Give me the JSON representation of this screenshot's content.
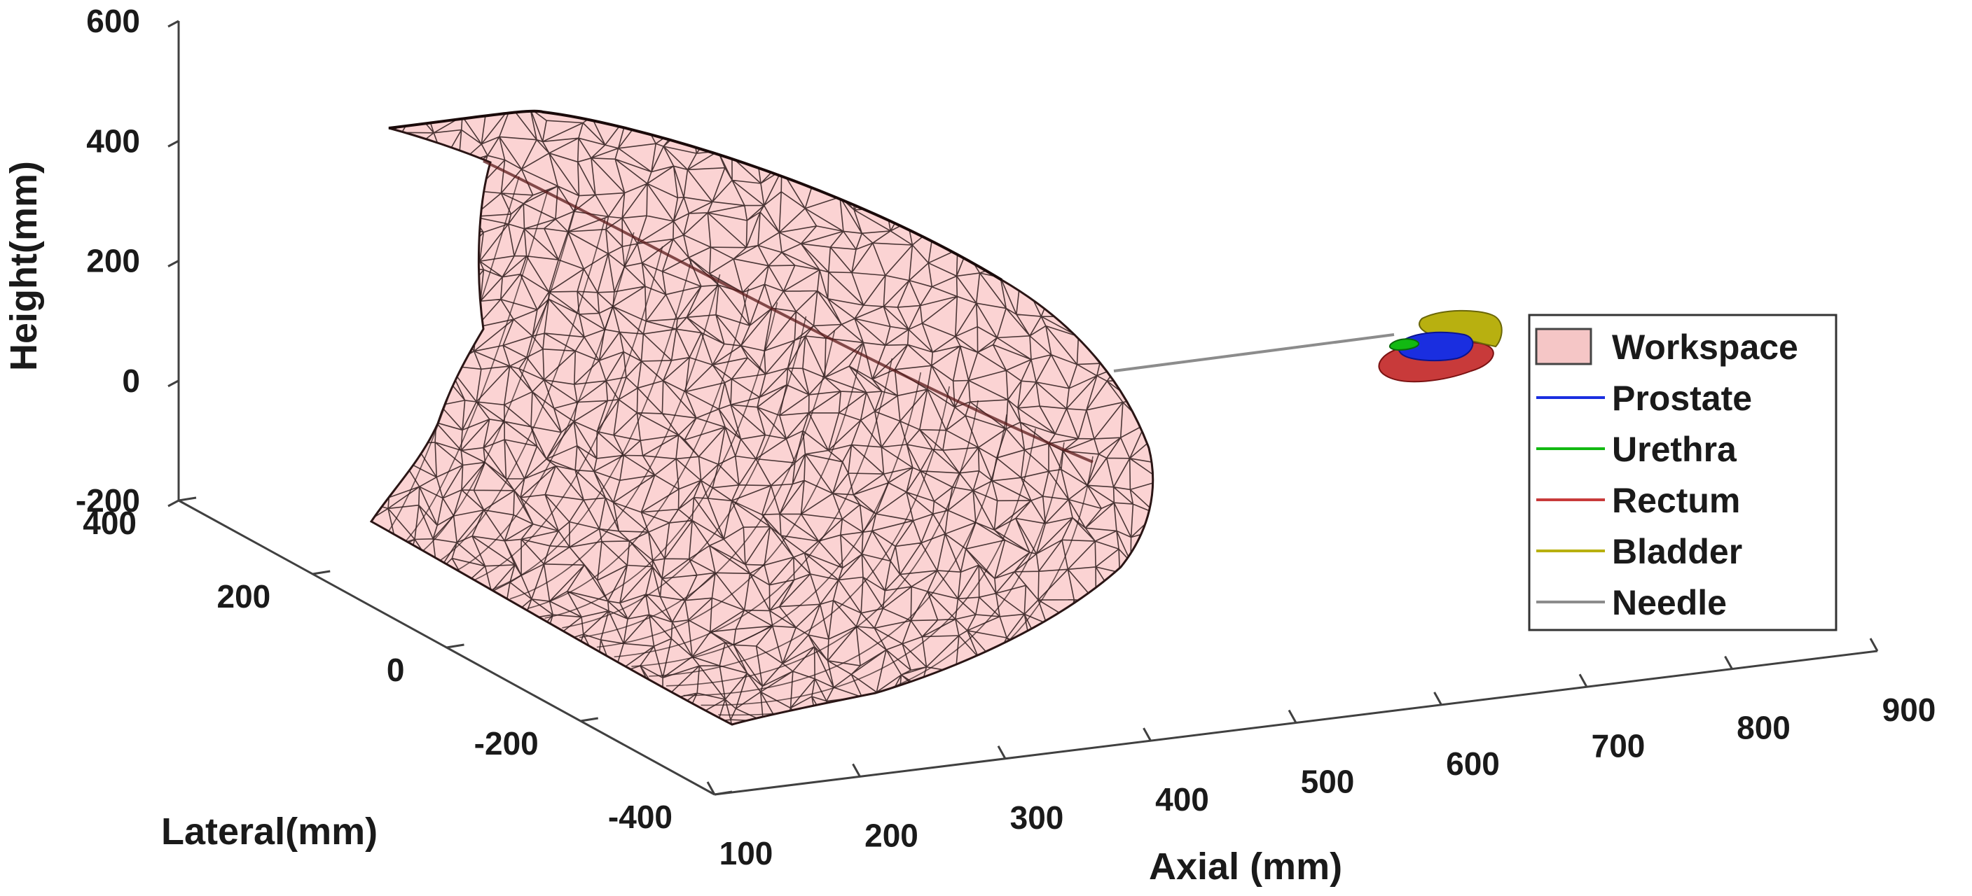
{
  "chart_data": {
    "type": "3d-surface",
    "title": "",
    "xlabel": "Axial (mm)",
    "ylabel": "Lateral(mm)",
    "zlabel": "Height(mm)",
    "xlim": [
      100,
      900
    ],
    "ylim": [
      -400,
      400
    ],
    "zlim": [
      -200,
      600
    ],
    "xticks": [
      "100",
      "200",
      "300",
      "400",
      "500",
      "600",
      "700",
      "800",
      "900"
    ],
    "yticks": [
      "400",
      "200",
      "0",
      "-200",
      "-400"
    ],
    "zticks": [
      "600",
      "400",
      "200",
      "0",
      "-200"
    ],
    "legend": {
      "location": "east",
      "entries": [
        {
          "label": "Workspace",
          "color": "#f5c6c6",
          "kind": "patch"
        },
        {
          "label": "Prostate",
          "color": "#1a2ee0",
          "kind": "line"
        },
        {
          "label": "Urethra",
          "color": "#12b912",
          "kind": "line"
        },
        {
          "label": "Rectum",
          "color": "#c83a3a",
          "kind": "line"
        },
        {
          "label": "Bladder",
          "color": "#b8b010",
          "kind": "line"
        },
        {
          "label": "Needle",
          "color": "#8c8c8c",
          "kind": "line"
        }
      ]
    },
    "series": [
      {
        "name": "Workspace",
        "kind": "triangulated-mesh",
        "x_range": [
          100,
          550
        ],
        "y_range": [
          -250,
          400
        ],
        "z_range": [
          -150,
          450
        ]
      },
      {
        "name": "Needle",
        "kind": "segment",
        "x_range": [
          550,
          800
        ],
        "z": 0
      },
      {
        "name": "Prostate",
        "kind": "organ-surface",
        "x_approx": 800,
        "z_approx": 20
      },
      {
        "name": "Urethra",
        "kind": "organ-surface",
        "x_approx": 790,
        "z_approx": 25
      },
      {
        "name": "Rectum",
        "kind": "organ-surface",
        "x_approx": 800,
        "z_approx": -20
      },
      {
        "name": "Bladder",
        "kind": "organ-surface",
        "x_approx": 820,
        "z_approx": 60
      }
    ]
  }
}
